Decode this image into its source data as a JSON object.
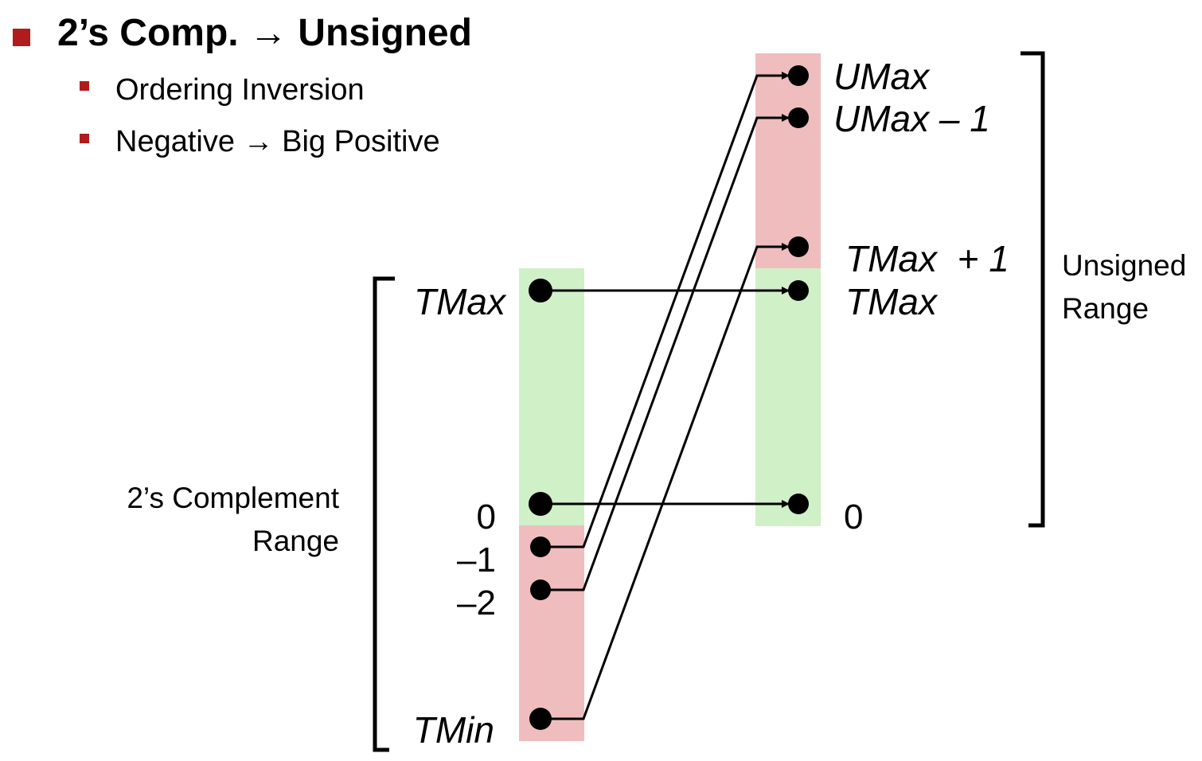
{
  "heading": {
    "title": "2’s Comp. → Unsigned",
    "bullets": [
      "Ordering Inversion",
      "Negative → Big Positive"
    ]
  },
  "left_column": {
    "range_label_line1": "2’s Complement",
    "range_label_line2": "Range",
    "labels": {
      "tmax": "TMax",
      "zero": "0",
      "minus_one": "–1",
      "minus_two": "–2",
      "tmin": "TMin"
    }
  },
  "right_column": {
    "range_label_line1": "Unsigned",
    "range_label_line2": "Range",
    "labels": {
      "umax": "UMax",
      "umax_minus_one": "UMax – 1",
      "tmax_plus_one": "TMax  + 1",
      "tmax": "TMax",
      "zero": "0"
    }
  },
  "colors": {
    "negative_region": "#efbdbd",
    "nonnegative_region": "#d0f0c8",
    "bullet": "#b01c1c"
  }
}
